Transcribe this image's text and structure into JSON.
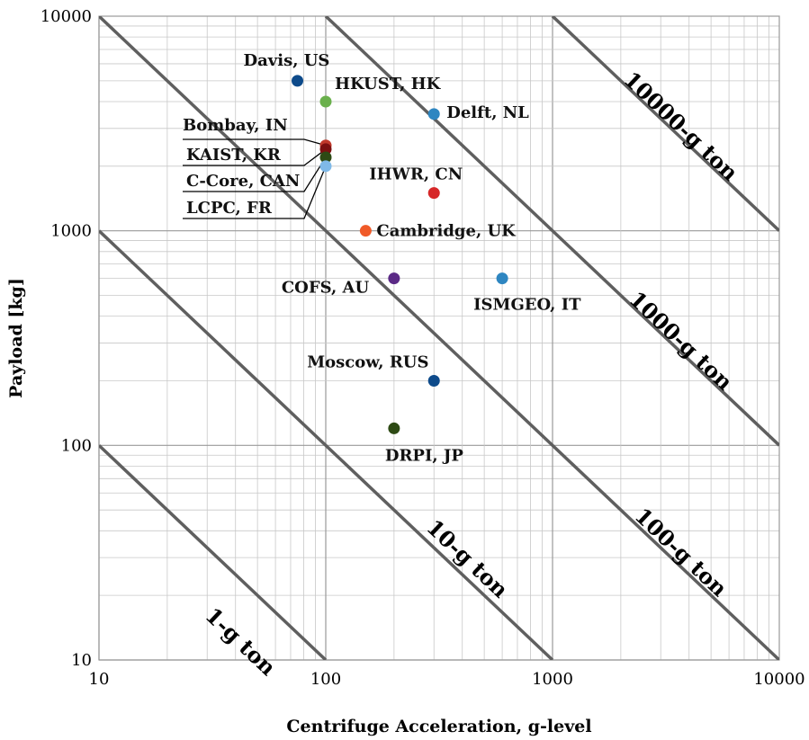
{
  "chart_data": {
    "type": "scatter",
    "title": "",
    "xlabel": "Centrifuge Acceleration, g-level",
    "ylabel": "Payload [kg]",
    "xscale": "log",
    "yscale": "log",
    "xlim": [
      10,
      10000
    ],
    "ylim": [
      10,
      10000
    ],
    "x_ticks": [
      "10",
      "100",
      "1000",
      "10000"
    ],
    "y_ticks": [
      "10",
      "100",
      "1000",
      "10000"
    ],
    "grid": true,
    "points": [
      {
        "label": "Davis, US",
        "x": 75,
        "y": 5000,
        "color": "#0d4a8a"
      },
      {
        "label": "HKUST, HK",
        "x": 100,
        "y": 4000,
        "color": "#6ab04c"
      },
      {
        "label": "Delft, NL",
        "x": 300,
        "y": 3500,
        "color": "#2e86c1"
      },
      {
        "label": "Bombay, IN",
        "x": 100,
        "y": 2500,
        "color": "#c0392b"
      },
      {
        "label": "KAIST, KR",
        "x": 100,
        "y": 2400,
        "color": "#7b1010"
      },
      {
        "label": "C-Core, CAN",
        "x": 100,
        "y": 2200,
        "color": "#2d4a14"
      },
      {
        "label": "LCPC, FR",
        "x": 100,
        "y": 2000,
        "color": "#7fb9e8"
      },
      {
        "label": "IHWR, CN",
        "x": 300,
        "y": 1500,
        "color": "#d62728"
      },
      {
        "label": "Cambridge, UK",
        "x": 150,
        "y": 1000,
        "color": "#f05a28"
      },
      {
        "label": "COFS, AU",
        "x": 200,
        "y": 600,
        "color": "#5b2a86"
      },
      {
        "label": "ISMGEO, IT",
        "x": 600,
        "y": 600,
        "color": "#2e86c1"
      },
      {
        "label": "Moscow, RUS",
        "x": 300,
        "y": 200,
        "color": "#0d4a8a"
      },
      {
        "label": "DRPI, JP",
        "x": 200,
        "y": 120,
        "color": "#2d4a14"
      }
    ],
    "reference_lines": [
      {
        "label": "1-g ton",
        "value": 1000
      },
      {
        "label": "10-g ton",
        "value": 10000
      },
      {
        "label": "100-g ton",
        "value": 100000
      },
      {
        "label": "1000-g ton",
        "value": 1000000
      },
      {
        "label": "10000-g ton",
        "value": 10000000
      }
    ]
  }
}
